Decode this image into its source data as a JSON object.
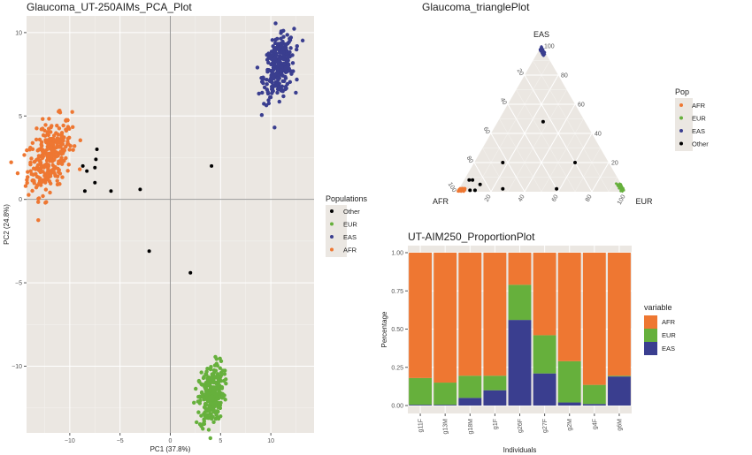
{
  "chart_data": [
    {
      "type": "scatter",
      "title": "Glaucoma_UT-250AIMs_PCA_Plot",
      "xlabel": "PC1 (37.8%)",
      "ylabel": "PC2 (24.8%)",
      "xlim": [
        -14.3,
        14.3
      ],
      "ylim": [
        -14,
        11
      ],
      "xticks": [
        -10,
        -5,
        0,
        5,
        10
      ],
      "yticks": [
        10,
        5,
        0,
        -5,
        -10
      ],
      "grid": true,
      "reference_lines": {
        "x": 0,
        "y": 0
      },
      "legend": {
        "title": "Populations",
        "placement": "right",
        "entries": [
          "Other",
          "EUR",
          "EAS",
          "AFR"
        ]
      },
      "colors": {
        "Other": "#000000",
        "EUR": "#66b03c",
        "EAS": "#3a3e8f",
        "AFR": "#ee7732"
      },
      "clusters": [
        {
          "name": "AFR",
          "center": [
            -12.0,
            2.6
          ],
          "spread": [
            1.1,
            1.0
          ],
          "n": 300
        },
        {
          "name": "EAS",
          "center": [
            10.8,
            7.9
          ],
          "spread": [
            0.75,
            0.85
          ],
          "n": 300
        },
        {
          "name": "EUR",
          "center": [
            4.1,
            -11.7
          ],
          "spread": [
            0.6,
            0.9
          ],
          "n": 300
        }
      ],
      "series": [
        {
          "name": "Other",
          "points": [
            [
              -8.7,
              2.0
            ],
            [
              -8.5,
              0.5
            ],
            [
              -8.3,
              1.7
            ],
            [
              -7.5,
              1.9
            ],
            [
              -7.4,
              2.4
            ],
            [
              -7.3,
              3.0
            ],
            [
              -7.5,
              1.0
            ],
            [
              -5.9,
              0.5
            ],
            [
              -3.0,
              0.6
            ],
            [
              4.1,
              2.0
            ],
            [
              -2.1,
              -3.1
            ],
            [
              2.0,
              -4.4
            ]
          ]
        }
      ]
    },
    {
      "type": "scatter",
      "subtype": "ternary",
      "title": "Glaucoma_trianglePlot",
      "axes": {
        "top": "EAS",
        "left": "AFR",
        "right": "EUR"
      },
      "ticks": [
        20,
        40,
        60,
        80,
        100
      ],
      "grid": true,
      "legend": {
        "title": "Pop",
        "placement": "right",
        "entries": [
          "AFR",
          "EUR",
          "EAS",
          "Other"
        ]
      },
      "colors": {
        "AFR": "#ee7732",
        "EUR": "#66b03c",
        "EAS": "#3a3e8f",
        "Other": "#000000"
      },
      "series": [
        {
          "name": "Other",
          "points_afr_eur_eas": [
            [
              25,
              27,
              48
            ],
            [
              63,
              17,
              20
            ],
            [
              20,
              60,
              20
            ],
            [
              89,
              3,
              8
            ],
            [
              87,
              5,
              8
            ],
            [
              84,
              11,
              5
            ],
            [
              72,
              26,
              2
            ],
            [
              40,
              58,
              2
            ],
            [
              92,
              7,
              1
            ],
            [
              89,
              10,
              1
            ]
          ]
        }
      ]
    },
    {
      "type": "bar",
      "stacked": true,
      "title": "UT-AIM250_ProportionPlot",
      "xlabel": "Individuals",
      "ylabel": "Percentage",
      "ylim": [
        0,
        1
      ],
      "yticks": [
        "0.00",
        "0.25",
        "0.50",
        "0.75",
        "1.00"
      ],
      "categories": [
        "g11F",
        "g13M",
        "g18M",
        "g1F",
        "g26F",
        "g27F",
        "g2M",
        "g4F",
        "g6M"
      ],
      "legend": {
        "title": "variable",
        "placement": "right",
        "entries": [
          "AFR",
          "EUR",
          "EAS"
        ]
      },
      "colors": {
        "AFR": "#ee7732",
        "EUR": "#66b03c",
        "EAS": "#3a3e8f"
      },
      "series": [
        {
          "name": "EAS",
          "values": [
            0.005,
            0.005,
            0.05,
            0.1,
            0.56,
            0.21,
            0.02,
            0.01,
            0.19
          ]
        },
        {
          "name": "EUR",
          "values": [
            0.175,
            0.145,
            0.145,
            0.095,
            0.23,
            0.25,
            0.27,
            0.125,
            0.005
          ]
        },
        {
          "name": "AFR",
          "values": [
            0.82,
            0.85,
            0.805,
            0.805,
            0.21,
            0.54,
            0.71,
            0.865,
            0.805
          ]
        }
      ]
    }
  ]
}
